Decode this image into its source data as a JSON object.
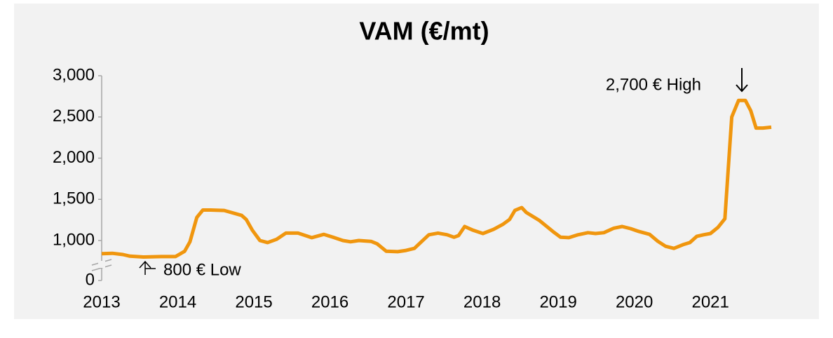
{
  "chart_data": {
    "type": "line",
    "title": "VAM (€/mt)",
    "x": [
      2013.0,
      2013.14,
      2013.28,
      2013.37,
      2013.55,
      2013.78,
      2013.97,
      2014.09,
      2014.16,
      2014.25,
      2014.33,
      2014.43,
      2014.61,
      2014.84,
      2014.9,
      2014.98,
      2015.08,
      2015.18,
      2015.3,
      2015.42,
      2015.58,
      2015.76,
      2015.92,
      2016.04,
      2016.17,
      2016.27,
      2016.38,
      2016.54,
      2016.62,
      2016.74,
      2016.89,
      2017.0,
      2017.11,
      2017.19,
      2017.3,
      2017.42,
      2017.54,
      2017.63,
      2017.69,
      2017.77,
      2017.88,
      2018.01,
      2018.15,
      2018.27,
      2018.36,
      2018.43,
      2018.52,
      2018.58,
      2018.75,
      2018.93,
      2019.03,
      2019.14,
      2019.26,
      2019.39,
      2019.49,
      2019.6,
      2019.73,
      2019.84,
      2019.95,
      2020.06,
      2020.2,
      2020.31,
      2020.41,
      2020.52,
      2020.64,
      2020.73,
      2020.82,
      2020.91,
      2021.0,
      2021.1,
      2021.19,
      2021.28,
      2021.37,
      2021.46,
      2021.53,
      2021.6,
      2021.69,
      2021.8
    ],
    "values": [
      840,
      845,
      830,
      810,
      800,
      805,
      805,
      870,
      985,
      1280,
      1370,
      1370,
      1365,
      1305,
      1255,
      1125,
      1000,
      975,
      1015,
      1090,
      1090,
      1035,
      1075,
      1040,
      1000,
      985,
      1000,
      990,
      960,
      870,
      865,
      880,
      905,
      975,
      1070,
      1090,
      1070,
      1040,
      1060,
      1170,
      1125,
      1085,
      1135,
      1195,
      1255,
      1365,
      1400,
      1340,
      1245,
      1110,
      1040,
      1035,
      1070,
      1095,
      1085,
      1095,
      1150,
      1170,
      1145,
      1110,
      1075,
      990,
      930,
      905,
      950,
      975,
      1050,
      1070,
      1085,
      1160,
      1265,
      2500,
      2700,
      2700,
      2575,
      2365,
      2365,
      2375
    ],
    "color": "#f0960e",
    "xlim": [
      2013,
      2021.8
    ],
    "xticks": [
      2013,
      2014,
      2015,
      2016,
      2017,
      2018,
      2019,
      2020,
      2021
    ],
    "ylim": [
      0,
      3000
    ],
    "yticks": [
      0,
      {
        "value": 1000,
        "label": "1,000"
      },
      {
        "value": 1500,
        "label": "1,500"
      },
      {
        "value": 2000,
        "label": "2,000"
      },
      {
        "value": 2500,
        "label": "2,500"
      },
      {
        "value": 3000,
        "label": "3,000"
      }
    ],
    "y_axis_break": true,
    "annotations": [
      {
        "text": "2,700 € High"
      },
      {
        "text": "800 € Low"
      }
    ]
  }
}
